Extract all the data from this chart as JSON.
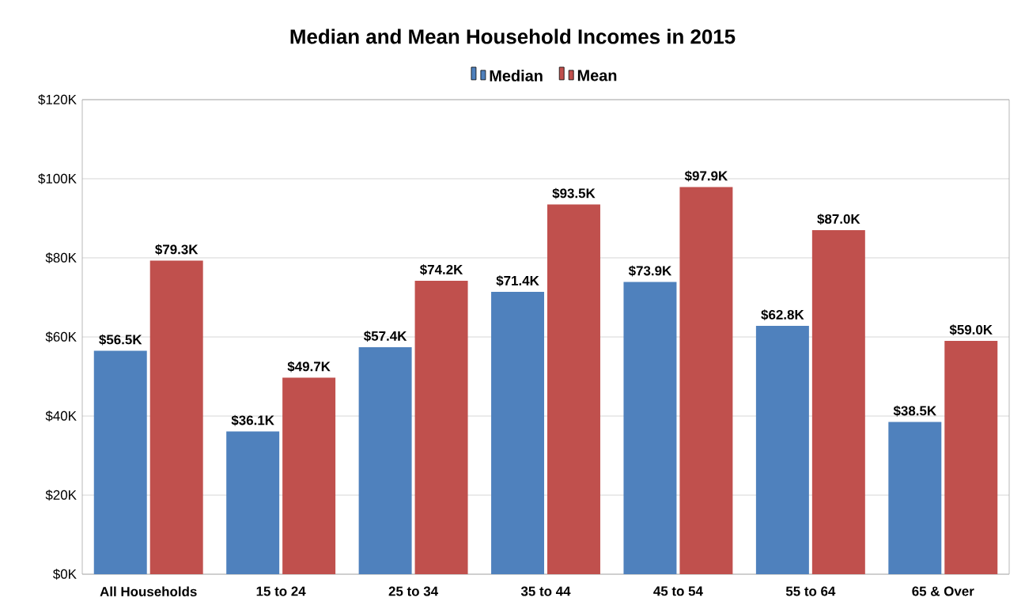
{
  "chart_data": {
    "type": "bar",
    "title": "Median and Mean Household Incomes in 2015",
    "categories": [
      "All Households",
      "15 to 24",
      "25 to 34",
      "35 to 44",
      "45 to 54",
      "55 to 64",
      "65 & Over"
    ],
    "series": [
      {
        "name": "Median",
        "color": "#4f81bd",
        "values": [
          56.5,
          36.1,
          57.4,
          71.4,
          73.9,
          62.8,
          38.5
        ],
        "value_labels": [
          "$56.5K",
          "$36.1K",
          "$57.4K",
          "$71.4K",
          "$73.9K",
          "$62.8K",
          "$38.5K"
        ]
      },
      {
        "name": "Mean",
        "color": "#c0504d",
        "values": [
          79.3,
          49.7,
          74.2,
          93.5,
          97.9,
          87.0,
          59.0
        ],
        "value_labels": [
          "$79.3K",
          "$49.7K",
          "$74.2K",
          "$93.5K",
          "$97.9K",
          "$87.0K",
          "$59.0K"
        ]
      }
    ],
    "ylim": [
      0,
      120
    ],
    "yticks": [
      {
        "value": 0,
        "label": "$0K"
      },
      {
        "value": 20,
        "label": "$20K"
      },
      {
        "value": 40,
        "label": "$40K"
      },
      {
        "value": 60,
        "label": "$60K"
      },
      {
        "value": 80,
        "label": "$80K"
      },
      {
        "value": 100,
        "label": "$100K"
      },
      {
        "value": 120,
        "label": "$120K"
      }
    ],
    "grid": "y",
    "legend": "top"
  }
}
